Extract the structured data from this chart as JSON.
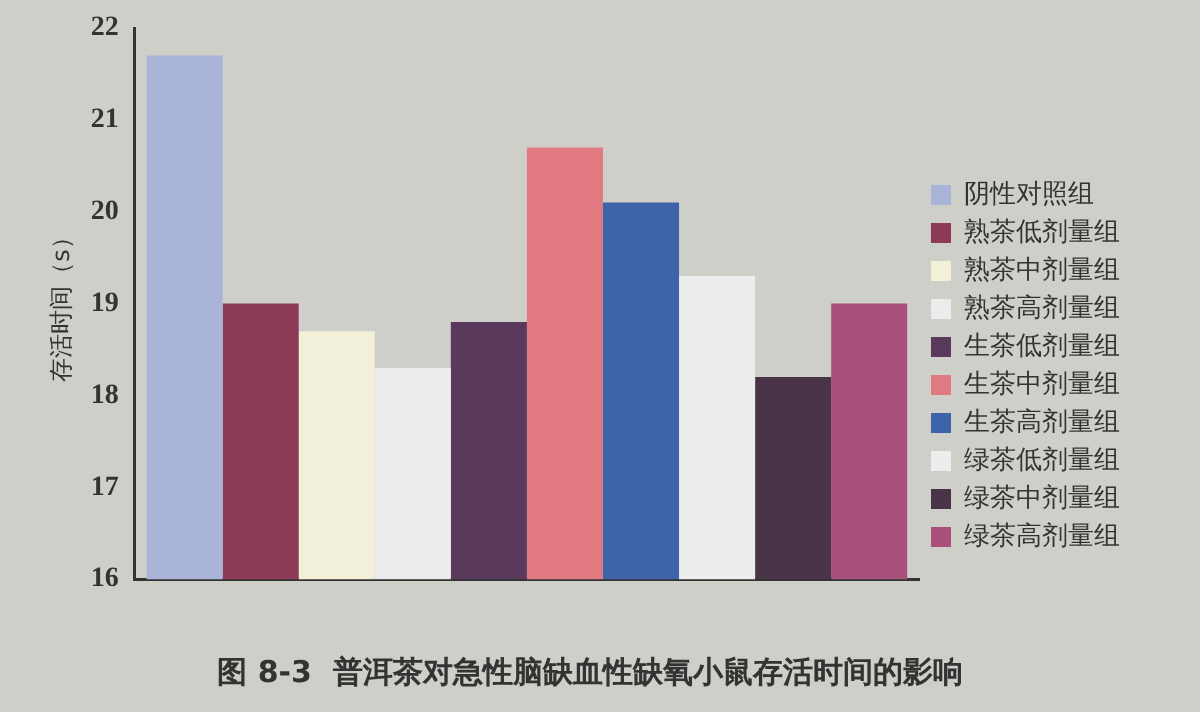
{
  "chart_data": {
    "type": "bar",
    "title": "图 8-3  普洱茶对急性脑缺血性缺氧小鼠存活时间的影响",
    "ylabel": "存活时间（s）",
    "categories": [
      null
    ],
    "series": [
      {
        "name": "阴性对照组",
        "color": "#a9b4d8",
        "values": [
          21.7
        ]
      },
      {
        "name": "熟茶低剂量组",
        "color": "#8c3a55",
        "values": [
          19.0
        ]
      },
      {
        "name": "熟茶中剂量组",
        "color": "#f2f0d8",
        "values": [
          18.7
        ]
      },
      {
        "name": "熟茶高剂量组",
        "color": "#ececec",
        "values": [
          18.3
        ]
      },
      {
        "name": "生茶低剂量组",
        "color": "#5a3a5c",
        "values": [
          18.8
        ]
      },
      {
        "name": "生茶中剂量组",
        "color": "#e07a80",
        "values": [
          20.7
        ]
      },
      {
        "name": "生茶高剂量组",
        "color": "#3e63a8",
        "values": [
          20.1
        ]
      },
      {
        "name": "绿茶低剂量组",
        "color": "#ededed",
        "values": [
          19.3
        ]
      },
      {
        "name": "绿茶中剂量组",
        "color": "#4a3448",
        "values": [
          18.2
        ]
      },
      {
        "name": "绿茶高剂量组",
        "color": "#a8507a",
        "values": [
          19.0
        ]
      }
    ],
    "ylim": [
      16,
      22
    ],
    "yticks": [
      16,
      17,
      18,
      19,
      20,
      21,
      22
    ],
    "grid": false,
    "legend": "right"
  }
}
